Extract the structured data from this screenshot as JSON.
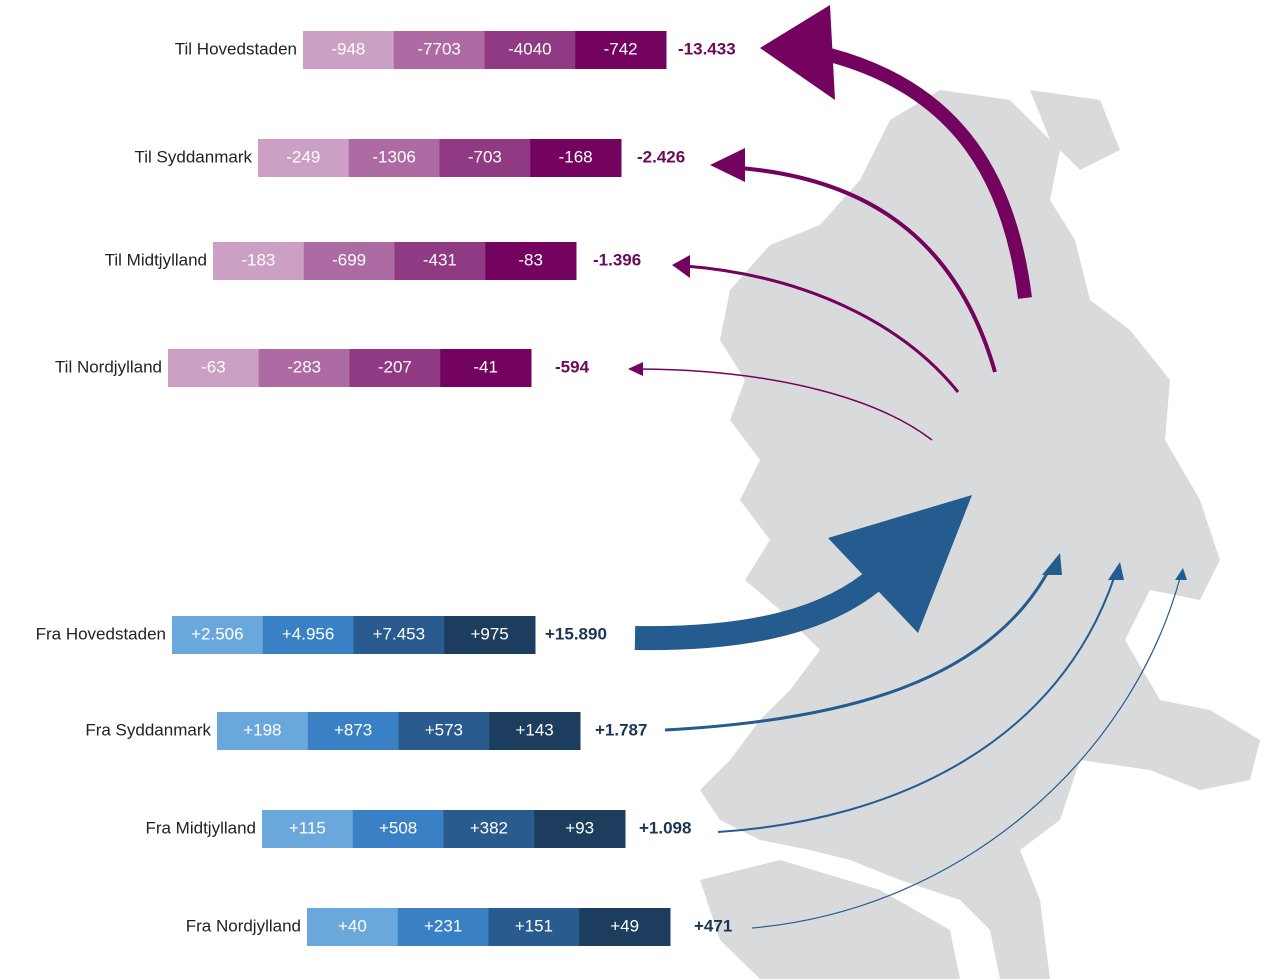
{
  "outflows": [
    {
      "label": "Til Hovedstaden",
      "segments": [
        "-948",
        "-7703",
        "-4040",
        "-742"
      ],
      "total": "-13.433"
    },
    {
      "label": "Til Syddanmark",
      "segments": [
        "-249",
        "-1306",
        "-703",
        "-168"
      ],
      "total": "-2.426"
    },
    {
      "label": "Til Midtjylland",
      "segments": [
        "-183",
        "-699",
        "-431",
        "-83"
      ],
      "total": "-1.396"
    },
    {
      "label": "Til Nordjylland",
      "segments": [
        "-63",
        "-283",
        "-207",
        "-41"
      ],
      "total": "-594"
    }
  ],
  "inflows": [
    {
      "label": "Fra Hovedstaden",
      "segments": [
        "+2.506",
        "+4.956",
        "+7.453",
        "+975"
      ],
      "total": "+15.890"
    },
    {
      "label": "Fra Syddanmark",
      "segments": [
        "+198",
        "+873",
        "+573",
        "+143"
      ],
      "total": "+1.787"
    },
    {
      "label": "Fra Midtjylland",
      "segments": [
        "+115",
        "+508",
        "+382",
        "+93"
      ],
      "total": "+1.098"
    },
    {
      "label": "Fra Nordjylland",
      "segments": [
        "+40",
        "+231",
        "+151",
        "+49"
      ],
      "total": "+471"
    }
  ]
}
